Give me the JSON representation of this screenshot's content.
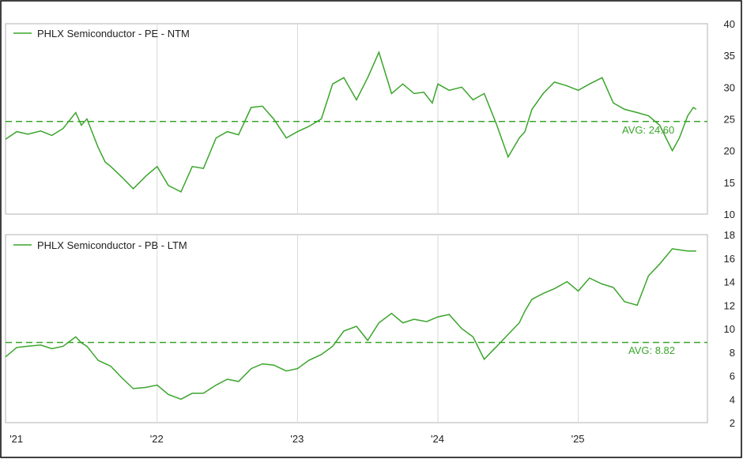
{
  "colors": {
    "series": "#3aa52b",
    "avg_line": "#3aa52b",
    "grid": "#d9d9d9",
    "border": "#000000",
    "panel_border": "#b3b3b3",
    "text": "#222222"
  },
  "x_axis": {
    "ticks": [
      "'21",
      "'22",
      "'23",
      "'24",
      "'25"
    ],
    "tick_positions": [
      2021.0,
      2022.0,
      2023.0,
      2024.0,
      2025.0
    ],
    "range": [
      2020.92,
      2025.92
    ]
  },
  "chart_data": [
    {
      "type": "line",
      "legend": "PHLX Semiconductor - PE - NTM",
      "ylim": [
        10,
        40
      ],
      "yticks": [
        10,
        15,
        20,
        25,
        30,
        35,
        40
      ],
      "avg_label": "AVG: 24.60",
      "avg": 24.6,
      "x": [
        2020.92,
        2021.0,
        2021.08,
        2021.17,
        2021.25,
        2021.33,
        2021.42,
        2021.46,
        2021.5,
        2021.58,
        2021.63,
        2021.67,
        2021.75,
        2021.83,
        2021.92,
        2022.0,
        2022.08,
        2022.17,
        2022.25,
        2022.33,
        2022.42,
        2022.5,
        2022.58,
        2022.67,
        2022.75,
        2022.83,
        2022.92,
        2023.0,
        2023.08,
        2023.17,
        2023.25,
        2023.33,
        2023.42,
        2023.5,
        2023.58,
        2023.67,
        2023.75,
        2023.83,
        2023.9,
        2023.96,
        2024.0,
        2024.08,
        2024.17,
        2024.25,
        2024.33,
        2024.42,
        2024.5,
        2024.58,
        2024.62,
        2024.67,
        2024.75,
        2024.83,
        2024.92,
        2025.0,
        2025.08,
        2025.17,
        2025.25,
        2025.33,
        2025.42,
        2025.5,
        2025.58,
        2025.67,
        2025.72,
        2025.78,
        2025.82,
        2025.84
      ],
      "values": [
        21.8,
        23.0,
        22.6,
        23.1,
        22.4,
        23.5,
        26.0,
        24.0,
        25.0,
        20.5,
        18.2,
        17.5,
        15.8,
        14.0,
        16.0,
        17.5,
        14.5,
        13.5,
        17.5,
        17.2,
        22.0,
        23.0,
        22.5,
        26.8,
        27.0,
        25.0,
        22.0,
        23.0,
        23.8,
        25.0,
        30.5,
        31.5,
        28.0,
        31.5,
        35.5,
        29.0,
        30.5,
        29.0,
        29.2,
        27.5,
        30.5,
        29.5,
        30.0,
        28.0,
        29.0,
        24.0,
        19.0,
        22.0,
        23.0,
        26.5,
        29.0,
        30.8,
        30.2,
        29.5,
        30.5,
        31.5,
        27.5,
        26.5,
        26.0,
        25.5,
        24.0,
        20.0,
        22.0,
        25.5,
        26.8,
        26.5
      ]
    },
    {
      "type": "line",
      "legend": "PHLX Semiconductor - PB - LTM",
      "ylim": [
        2,
        18
      ],
      "yticks": [
        2,
        4,
        6,
        8,
        10,
        12,
        14,
        16,
        18
      ],
      "avg_label": "AVG: 8.82",
      "avg": 8.82,
      "x": [
        2020.92,
        2021.0,
        2021.08,
        2021.17,
        2021.25,
        2021.33,
        2021.42,
        2021.46,
        2021.5,
        2021.58,
        2021.67,
        2021.75,
        2021.83,
        2021.92,
        2022.0,
        2022.08,
        2022.17,
        2022.25,
        2022.33,
        2022.42,
        2022.5,
        2022.58,
        2022.67,
        2022.75,
        2022.83,
        2022.92,
        2023.0,
        2023.08,
        2023.17,
        2023.25,
        2023.33,
        2023.42,
        2023.5,
        2023.58,
        2023.67,
        2023.75,
        2023.83,
        2023.92,
        2024.0,
        2024.08,
        2024.17,
        2024.25,
        2024.33,
        2024.42,
        2024.5,
        2024.58,
        2024.62,
        2024.67,
        2024.75,
        2024.83,
        2024.92,
        2025.0,
        2025.08,
        2025.17,
        2025.25,
        2025.33,
        2025.42,
        2025.5,
        2025.58,
        2025.67,
        2025.72,
        2025.78,
        2025.82,
        2025.84
      ],
      "values": [
        7.6,
        8.4,
        8.5,
        8.6,
        8.3,
        8.5,
        9.3,
        8.8,
        8.5,
        7.3,
        6.8,
        5.8,
        4.9,
        5.0,
        5.2,
        4.4,
        4.0,
        4.5,
        4.5,
        5.2,
        5.7,
        5.5,
        6.6,
        7.0,
        6.9,
        6.4,
        6.6,
        7.3,
        7.8,
        8.5,
        9.8,
        10.2,
        9.0,
        10.5,
        11.3,
        10.5,
        10.8,
        10.6,
        11.0,
        11.2,
        10.0,
        9.3,
        7.4,
        8.5,
        9.5,
        10.5,
        11.5,
        12.5,
        13.0,
        13.4,
        14.0,
        13.2,
        14.3,
        13.8,
        13.5,
        12.3,
        12.0,
        14.5,
        15.5,
        16.8,
        16.7,
        16.6,
        16.6,
        16.6
      ]
    }
  ]
}
